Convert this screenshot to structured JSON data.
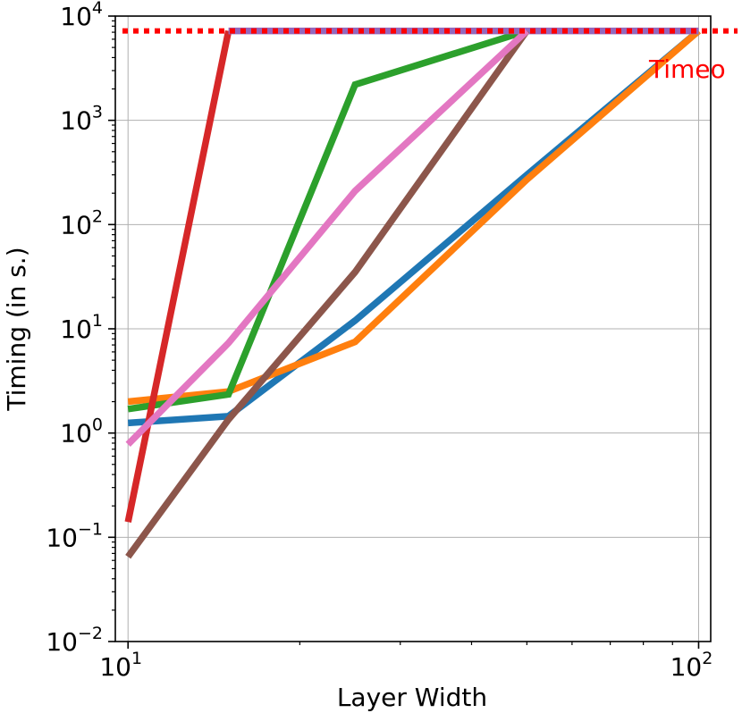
{
  "chart_data": {
    "type": "line",
    "xlabel": "Layer Width",
    "ylabel": "Timing (in s.)",
    "xscale": "log",
    "yscale": "log",
    "xlim": [
      9.5,
      105
    ],
    "ylim": [
      0.01,
      10000
    ],
    "grid": true,
    "x_ticks": [
      {
        "base": "10",
        "exp": "1",
        "value": 10
      },
      {
        "base": "10",
        "exp": "2",
        "value": 100
      }
    ],
    "y_ticks": [
      {
        "base": "10",
        "exp": "−2",
        "value": 0.01
      },
      {
        "base": "10",
        "exp": "−1",
        "value": 0.1
      },
      {
        "base": "10",
        "exp": "0",
        "value": 1
      },
      {
        "base": "10",
        "exp": "1",
        "value": 10
      },
      {
        "base": "10",
        "exp": "2",
        "value": 100
      },
      {
        "base": "10",
        "exp": "3",
        "value": 1000
      },
      {
        "base": "10",
        "exp": "4",
        "value": 10000
      }
    ],
    "timeout": {
      "value": 7200,
      "label": "Timeo",
      "color": "#ff0000"
    },
    "series": [
      {
        "color": "#1f77b4",
        "x": [
          10,
          15,
          25,
          50,
          100
        ],
        "y": [
          1.25,
          1.45,
          12,
          300,
          7200
        ]
      },
      {
        "color": "#ff7f0e",
        "x": [
          10,
          15,
          25,
          50,
          100
        ],
        "y": [
          2.0,
          2.5,
          7.5,
          270,
          7200
        ]
      },
      {
        "color": "#2ca02c",
        "x": [
          10,
          15,
          25,
          50
        ],
        "y": [
          1.7,
          2.35,
          2200,
          7200
        ]
      },
      {
        "color": "#d62728",
        "x": [
          10,
          15
        ],
        "y": [
          0.14,
          7200
        ]
      },
      {
        "color": "#9467bd",
        "x": [
          15,
          100
        ],
        "y": [
          7200,
          7200
        ]
      },
      {
        "color": "#8c564b",
        "x": [
          10,
          15,
          25,
          50
        ],
        "y": [
          0.065,
          1.35,
          35,
          7200
        ]
      },
      {
        "color": "#e377c2",
        "x": [
          10,
          15,
          25,
          50
        ],
        "y": [
          0.78,
          7.3,
          210,
          7200
        ]
      }
    ]
  }
}
